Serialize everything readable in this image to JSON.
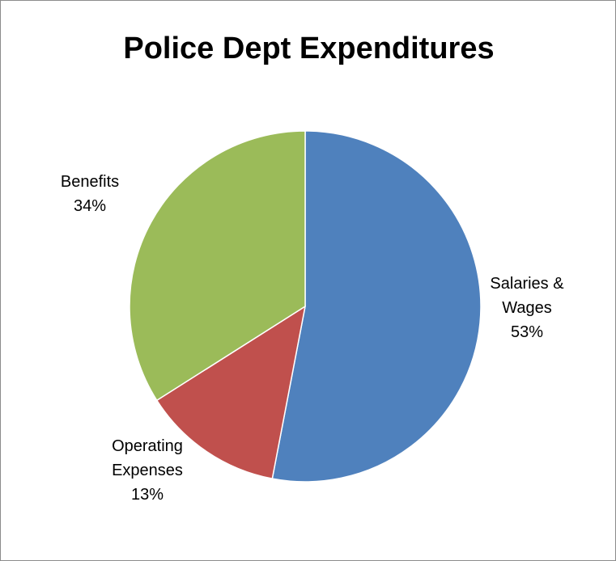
{
  "chart_data": {
    "type": "pie",
    "title": "Police Dept Expenditures",
    "slices": [
      {
        "lines": [
          "Salaries &",
          "Wages",
          "53%"
        ],
        "value": 53,
        "color": "#4f81bd"
      },
      {
        "lines": [
          "Operating",
          "Expenses",
          "13%"
        ],
        "value": 13,
        "color": "#c0504d"
      },
      {
        "lines": [
          "Benefits",
          "34%"
        ],
        "value": 34,
        "color": "#9bbb59"
      }
    ],
    "start_angle": "12 o'clock",
    "direction": "clockwise",
    "legend": "none",
    "data_labels": "outside, category name and percentage"
  }
}
